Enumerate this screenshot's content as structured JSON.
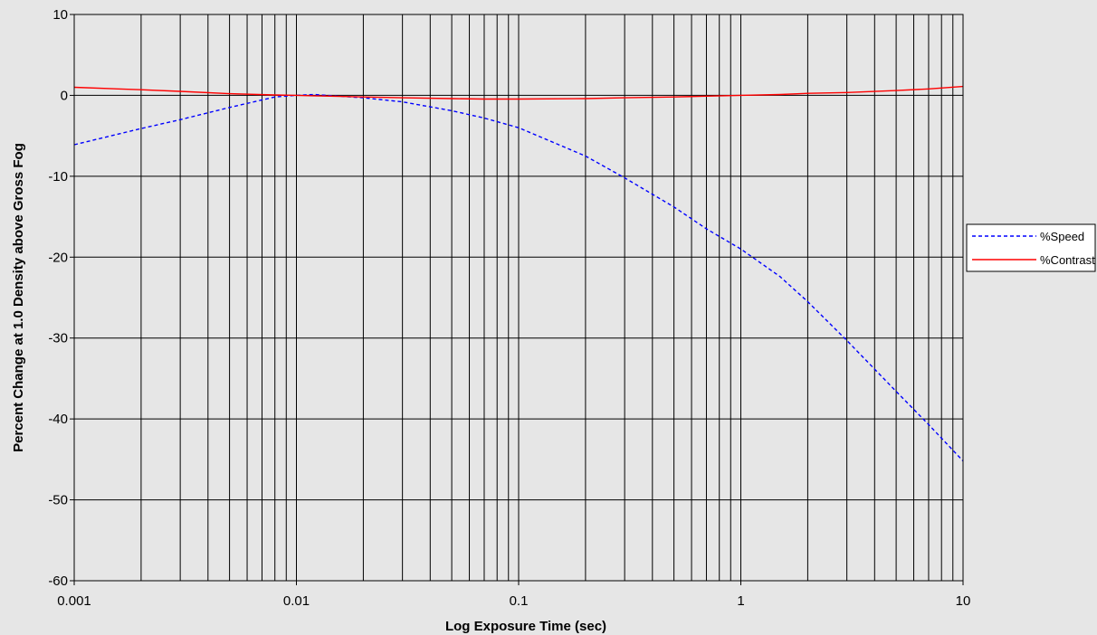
{
  "chart_data": {
    "type": "line",
    "title": "",
    "xlabel": "Log Exposure Time (sec)",
    "ylabel": "Percent Change at 1.0 Density above Gross Fog",
    "xscale": "log",
    "xlim": [
      0.001,
      10
    ],
    "ylim": [
      -60,
      10
    ],
    "x_ticks": [
      0.001,
      0.01,
      0.1,
      1,
      10
    ],
    "x_tick_labels": [
      "0.001",
      "0.01",
      "0.1",
      "1",
      "10"
    ],
    "y_ticks": [
      10,
      0,
      -10,
      -20,
      -30,
      -40,
      -50,
      -60
    ],
    "y_tick_labels": [
      "10",
      "0",
      "-10",
      "-20",
      "-30",
      "-40",
      "-50",
      "-60"
    ],
    "grid": "vertical log minor and major lines, horizontal major lines",
    "legend_position": "right",
    "background": "#e6e6e6",
    "x": [
      0.001,
      0.002,
      0.003,
      0.005,
      0.008,
      0.01,
      0.012,
      0.02,
      0.03,
      0.05,
      0.07,
      0.1,
      0.2,
      0.3,
      0.5,
      0.7,
      1,
      1.5,
      2,
      3,
      5,
      7,
      10
    ],
    "series": [
      {
        "name": "%Speed",
        "color": "#0000ff",
        "dash": "dashed",
        "values": [
          -6.1,
          -4.1,
          -3.0,
          -1.5,
          -0.2,
          0.0,
          0.1,
          -0.3,
          -0.8,
          -1.9,
          -2.8,
          -4.0,
          -7.5,
          -10.2,
          -13.8,
          -16.5,
          -19.0,
          -22.4,
          -25.5,
          -30.3,
          -36.6,
          -40.7,
          -45.2
        ]
      },
      {
        "name": "%Contrast",
        "color": "#ff0000",
        "dash": "solid",
        "values": [
          1.0,
          0.7,
          0.5,
          0.2,
          0.05,
          0.0,
          -0.05,
          -0.2,
          -0.3,
          -0.4,
          -0.45,
          -0.45,
          -0.4,
          -0.3,
          -0.2,
          -0.1,
          0.0,
          0.1,
          0.25,
          0.35,
          0.6,
          0.8,
          1.1
        ]
      }
    ]
  }
}
